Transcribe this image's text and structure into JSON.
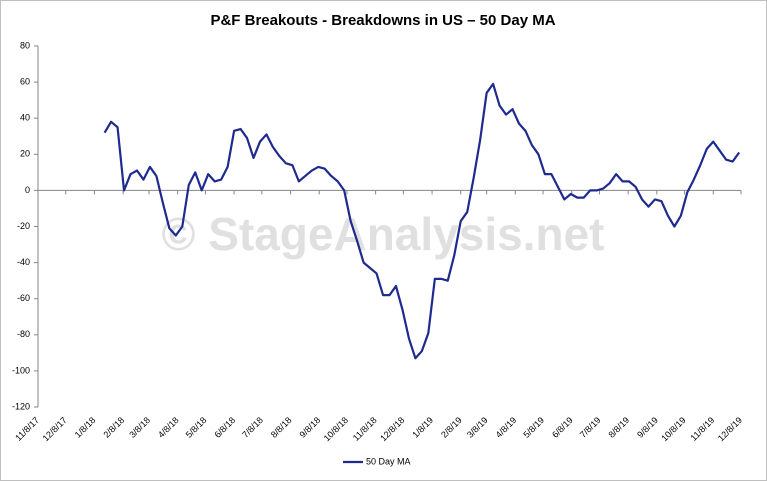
{
  "chart_data": {
    "type": "line",
    "title": "P&F Breakouts - Breakdowns in US – 50 Day MA",
    "watermark": "© StageAnalysis.net",
    "x": [
      "2018-01-19",
      "2018-01-26",
      "2018-02-02",
      "2018-02-09",
      "2018-02-16",
      "2018-02-23",
      "2018-03-02",
      "2018-03-09",
      "2018-03-16",
      "2018-03-23",
      "2018-03-30",
      "2018-04-06",
      "2018-04-13",
      "2018-04-20",
      "2018-04-27",
      "2018-05-04",
      "2018-05-11",
      "2018-05-18",
      "2018-05-25",
      "2018-06-01",
      "2018-06-08",
      "2018-06-15",
      "2018-06-22",
      "2018-06-29",
      "2018-07-06",
      "2018-07-13",
      "2018-07-20",
      "2018-07-27",
      "2018-08-03",
      "2018-08-10",
      "2018-08-17",
      "2018-08-24",
      "2018-08-31",
      "2018-09-07",
      "2018-09-14",
      "2018-09-21",
      "2018-09-28",
      "2018-10-05",
      "2018-10-12",
      "2018-10-19",
      "2018-10-26",
      "2018-11-02",
      "2018-11-09",
      "2018-11-16",
      "2018-11-23",
      "2018-11-30",
      "2018-12-07",
      "2018-12-14",
      "2018-12-21",
      "2018-12-28",
      "2019-01-04",
      "2019-01-11",
      "2019-01-18",
      "2019-01-25",
      "2019-02-01",
      "2019-02-08",
      "2019-02-15",
      "2019-02-22",
      "2019-03-01",
      "2019-03-08",
      "2019-03-15",
      "2019-03-22",
      "2019-03-29",
      "2019-04-05",
      "2019-04-12",
      "2019-04-19",
      "2019-04-26",
      "2019-05-03",
      "2019-05-10",
      "2019-05-17",
      "2019-05-24",
      "2019-05-31",
      "2019-06-07",
      "2019-06-14",
      "2019-06-21",
      "2019-06-28",
      "2019-07-05",
      "2019-07-12",
      "2019-07-19",
      "2019-07-26",
      "2019-08-02",
      "2019-08-09",
      "2019-08-16",
      "2019-08-23",
      "2019-08-30",
      "2019-09-06",
      "2019-09-13",
      "2019-09-20",
      "2019-09-27",
      "2019-10-04",
      "2019-10-11",
      "2019-10-18",
      "2019-10-25",
      "2019-11-01",
      "2019-11-08",
      "2019-11-15",
      "2019-11-22",
      "2019-11-29",
      "2019-12-06"
    ],
    "series": [
      {
        "name": "50 Day MA",
        "color": "#1f2a8f",
        "values": [
          32,
          38,
          35,
          0,
          9,
          11,
          6,
          13,
          8,
          -7,
          -21,
          -25,
          -20,
          3,
          10,
          0,
          9,
          5,
          6,
          13,
          33,
          34,
          29,
          18,
          27,
          31,
          24,
          19,
          15,
          14,
          5,
          8,
          11,
          13,
          12,
          8,
          5,
          0,
          -17,
          -28,
          -40,
          -43,
          -46,
          -58,
          -58,
          -53,
          -66,
          -82,
          -93,
          -89,
          -79,
          -49,
          -49,
          -50,
          -36,
          -17,
          -12,
          7,
          28,
          54,
          59,
          47,
          42,
          45,
          37,
          33,
          25,
          20,
          9,
          9,
          2,
          -5,
          -2,
          -4,
          -4,
          0,
          0,
          1,
          4,
          9,
          5,
          5,
          2,
          -5,
          -9,
          -5,
          -6,
          -14,
          -20,
          -14,
          -1,
          6,
          14,
          23,
          27,
          22,
          17,
          16,
          21
        ]
      }
    ],
    "xlim": [
      "2017-11-08",
      "2019-12-08"
    ],
    "xticks": [
      {
        "value": "2017-11-08",
        "label": "11/8/17"
      },
      {
        "value": "2017-12-08",
        "label": "12/8/17"
      },
      {
        "value": "2018-01-08",
        "label": "1/8/18"
      },
      {
        "value": "2018-02-08",
        "label": "2/8/18"
      },
      {
        "value": "2018-03-08",
        "label": "3/8/18"
      },
      {
        "value": "2018-04-08",
        "label": "4/8/18"
      },
      {
        "value": "2018-05-08",
        "label": "5/8/18"
      },
      {
        "value": "2018-06-08",
        "label": "6/8/18"
      },
      {
        "value": "2018-07-08",
        "label": "7/8/18"
      },
      {
        "value": "2018-08-08",
        "label": "8/8/18"
      },
      {
        "value": "2018-09-08",
        "label": "9/8/18"
      },
      {
        "value": "2018-10-08",
        "label": "10/8/18"
      },
      {
        "value": "2018-11-08",
        "label": "11/8/18"
      },
      {
        "value": "2018-12-08",
        "label": "12/8/18"
      },
      {
        "value": "2019-01-08",
        "label": "1/8/19"
      },
      {
        "value": "2019-02-08",
        "label": "2/8/19"
      },
      {
        "value": "2019-03-08",
        "label": "3/8/19"
      },
      {
        "value": "2019-04-08",
        "label": "4/8/19"
      },
      {
        "value": "2019-05-08",
        "label": "5/8/19"
      },
      {
        "value": "2019-06-08",
        "label": "6/8/19"
      },
      {
        "value": "2019-07-08",
        "label": "7/8/19"
      },
      {
        "value": "2019-08-08",
        "label": "8/8/19"
      },
      {
        "value": "2019-09-08",
        "label": "9/8/19"
      },
      {
        "value": "2019-10-08",
        "label": "10/8/19"
      },
      {
        "value": "2019-11-08",
        "label": "11/8/19"
      },
      {
        "value": "2019-12-08",
        "label": "12/8/19"
      }
    ],
    "ylim": [
      -120,
      80
    ],
    "yticks": [
      -120,
      -100,
      -80,
      -60,
      -40,
      -20,
      0,
      20,
      40,
      60,
      80
    ],
    "grid": false,
    "legend": "bottom"
  }
}
